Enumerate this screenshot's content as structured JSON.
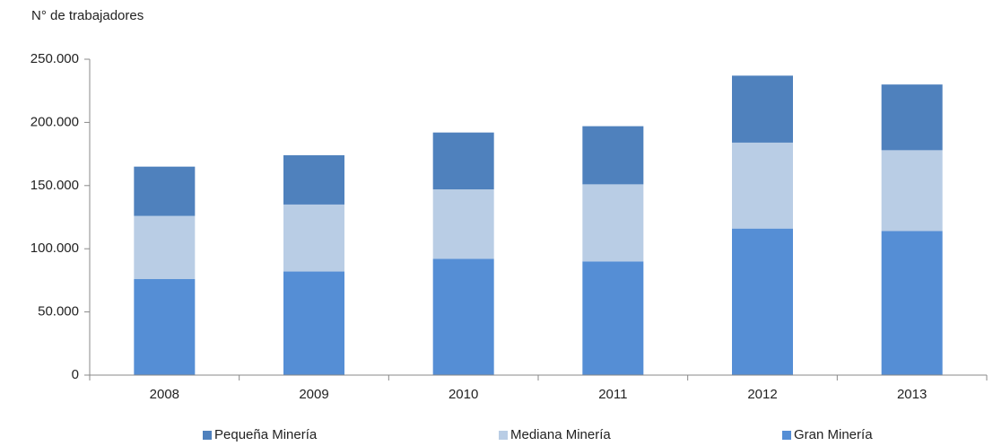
{
  "chart_data": {
    "type": "stacked_bar",
    "y_label": "N° de trabajadores",
    "categories": [
      "2008",
      "2009",
      "2010",
      "2011",
      "2012",
      "2013"
    ],
    "series": [
      {
        "name": "Gran Minería",
        "color": "#558ed5",
        "values": [
          76000,
          82000,
          92000,
          90000,
          116000,
          114000
        ]
      },
      {
        "name": "Mediana Minería",
        "color": "#b9cde5",
        "values": [
          50000,
          53000,
          55000,
          61000,
          68000,
          64000
        ]
      },
      {
        "name": "Pequeña Minería",
        "color": "#4f81bd",
        "values": [
          39000,
          39000,
          45000,
          46000,
          53000,
          52000
        ]
      }
    ],
    "legend_order": [
      2,
      1,
      0
    ],
    "ylim": [
      0,
      250000
    ],
    "yticks": [
      0,
      {
        "value": 50000,
        "label": "50.000"
      },
      {
        "value": 100000,
        "label": "100.000"
      },
      {
        "value": 150000,
        "label": "150.000"
      },
      {
        "value": 200000,
        "label": "200.000"
      },
      {
        "value": 250000,
        "label": "250.000"
      }
    ],
    "grid": false,
    "legend": "bottom"
  }
}
